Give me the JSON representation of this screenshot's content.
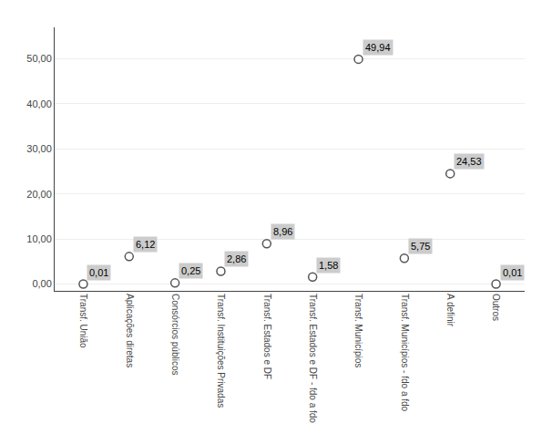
{
  "chart_data": {
    "type": "scatter",
    "categories": [
      "Transf. União",
      "Aplicações diretas",
      "Consórcios públicos",
      "Transf. Instituições Privadas",
      "Transf. Estados e DF",
      "Transf. Estados e DF - fdo a fdo",
      "Transf. Municípios",
      "Transf. Municípios - fdo a fdo",
      "A definir",
      "Outros"
    ],
    "values": [
      0.01,
      6.12,
      0.25,
      2.86,
      8.96,
      1.58,
      49.94,
      5.75,
      24.53,
      0.01
    ],
    "value_labels": [
      "0,01",
      "6,12",
      "0,25",
      "2,86",
      "8,96",
      "1,58",
      "49,94",
      "5,75",
      "24,53",
      "0,01"
    ],
    "data_labels": true,
    "ylim": [
      -1.5,
      57
    ],
    "yticks": [
      {
        "value": 0.0,
        "label": "0,00"
      },
      {
        "value": 10.0,
        "label": "10,00"
      },
      {
        "value": 20.0,
        "label": "20,00"
      },
      {
        "value": 30.0,
        "label": "30,00"
      },
      {
        "value": 40.0,
        "label": "40,00"
      },
      {
        "value": 50.0,
        "label": "50,00"
      }
    ],
    "grid": true,
    "marker": "circle",
    "color": "#555555"
  }
}
